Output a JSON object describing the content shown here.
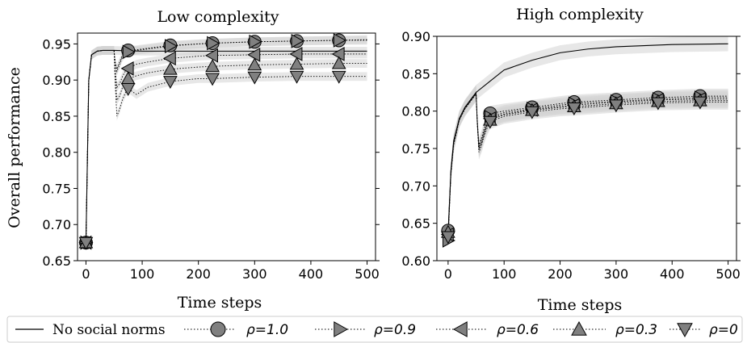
{
  "legend": {
    "entries": [
      {
        "label": "No social norms",
        "marker": "line"
      },
      {
        "label": "ρ=1.0",
        "marker": "circle"
      },
      {
        "label": "ρ=0.9",
        "marker": "triangle-right"
      },
      {
        "label": "ρ=0.6",
        "marker": "triangle-left"
      },
      {
        "label": "ρ=0.3",
        "marker": "triangle-up"
      },
      {
        "label": "ρ=0",
        "marker": "triangle-down"
      }
    ]
  },
  "colors": {
    "line": "#000000",
    "marker_fill": "#808080",
    "band": "#d3d3d3"
  },
  "chart_data": [
    {
      "type": "line",
      "title": "Low complexity",
      "xlabel": "Time steps",
      "ylabel": "Overall performance",
      "xlim": [
        -15,
        515
      ],
      "ylim": [
        0.65,
        0.965
      ],
      "xticks": [
        0,
        100,
        200,
        300,
        400,
        500
      ],
      "yticks": [
        0.65,
        0.7,
        0.75,
        0.8,
        0.85,
        0.9,
        0.95
      ],
      "ytick_labels": [
        "0.65",
        "0.70",
        "0.75",
        "0.80",
        "0.85",
        "0.90",
        "0.95"
      ],
      "series": [
        {
          "name": "No social norms",
          "marker": "none",
          "x": [
            0,
            5,
            10,
            20,
            30,
            40,
            50,
            100,
            200,
            300,
            400,
            500
          ],
          "y": [
            0.675,
            0.9,
            0.935,
            0.94,
            0.941,
            0.941,
            0.941,
            0.94,
            0.94,
            0.94,
            0.94,
            0.94
          ]
        },
        {
          "name": "ρ=1.0",
          "marker": "circle",
          "x": [
            0,
            5,
            10,
            20,
            30,
            40,
            50,
            52,
            55,
            60,
            65,
            70,
            75,
            90,
            110,
            150,
            200,
            225,
            300,
            375,
            450,
            500
          ],
          "y": [
            0.675,
            0.9,
            0.935,
            0.94,
            0.941,
            0.941,
            0.941,
            0.925,
            0.915,
            0.925,
            0.935,
            0.94,
            0.941,
            0.942,
            0.944,
            0.948,
            0.95,
            0.951,
            0.953,
            0.954,
            0.955,
            0.955
          ]
        },
        {
          "name": "ρ=0.9",
          "marker": "triangle-right",
          "x": [
            0,
            5,
            10,
            20,
            30,
            40,
            50,
            52,
            55,
            60,
            65,
            70,
            75,
            90,
            110,
            150,
            200,
            225,
            300,
            375,
            450,
            500
          ],
          "y": [
            0.675,
            0.9,
            0.935,
            0.94,
            0.941,
            0.941,
            0.941,
            0.923,
            0.912,
            0.922,
            0.932,
            0.937,
            0.939,
            0.941,
            0.943,
            0.947,
            0.95,
            0.951,
            0.953,
            0.954,
            0.955,
            0.956
          ]
        },
        {
          "name": "ρ=0.6",
          "marker": "triangle-left",
          "x": [
            0,
            5,
            10,
            20,
            30,
            40,
            50,
            52,
            55,
            60,
            65,
            70,
            75,
            90,
            110,
            150,
            200,
            225,
            300,
            375,
            450,
            500
          ],
          "y": [
            0.675,
            0.9,
            0.935,
            0.94,
            0.941,
            0.941,
            0.941,
            0.915,
            0.89,
            0.895,
            0.905,
            0.912,
            0.916,
            0.922,
            0.925,
            0.93,
            0.933,
            0.934,
            0.935,
            0.936,
            0.936,
            0.936
          ]
        },
        {
          "name": "ρ=0.3",
          "marker": "triangle-up",
          "x": [
            0,
            5,
            10,
            20,
            30,
            40,
            50,
            52,
            55,
            60,
            65,
            70,
            75,
            90,
            110,
            150,
            200,
            225,
            300,
            375,
            450,
            500
          ],
          "y": [
            0.675,
            0.9,
            0.935,
            0.94,
            0.941,
            0.941,
            0.941,
            0.905,
            0.872,
            0.878,
            0.89,
            0.898,
            0.902,
            0.906,
            0.91,
            0.915,
            0.918,
            0.919,
            0.921,
            0.922,
            0.923,
            0.923
          ]
        },
        {
          "name": "ρ=0",
          "marker": "triangle-down",
          "x": [
            0,
            5,
            10,
            20,
            30,
            40,
            50,
            52,
            55,
            60,
            65,
            70,
            75,
            90,
            110,
            150,
            200,
            225,
            300,
            375,
            450,
            500
          ],
          "y": [
            0.675,
            0.9,
            0.935,
            0.94,
            0.941,
            0.941,
            0.941,
            0.895,
            0.85,
            0.86,
            0.873,
            0.882,
            0.888,
            0.88,
            0.89,
            0.898,
            0.902,
            0.902,
            0.904,
            0.905,
            0.905,
            0.905
          ]
        }
      ],
      "markers_x": [
        0,
        75,
        150,
        225,
        300,
        375,
        450
      ]
    },
    {
      "type": "line",
      "title": "High complexity",
      "xlabel": "Time steps",
      "ylabel": "",
      "xlim": [
        -20,
        515
      ],
      "ylim": [
        0.6,
        0.9
      ],
      "xticks": [
        0,
        100,
        200,
        300,
        400,
        500
      ],
      "yticks": [
        0.6,
        0.65,
        0.7,
        0.75,
        0.8,
        0.85,
        0.9
      ],
      "ytick_labels": [
        "0.60",
        "0.65",
        "0.70",
        "0.75",
        "0.80",
        "0.85",
        "0.90"
      ],
      "series": [
        {
          "name": "No social norms",
          "marker": "none",
          "x": [
            0,
            5,
            10,
            20,
            30,
            40,
            50,
            75,
            100,
            150,
            200,
            250,
            300,
            400,
            500
          ],
          "y": [
            0.635,
            0.72,
            0.76,
            0.79,
            0.805,
            0.815,
            0.825,
            0.84,
            0.855,
            0.868,
            0.878,
            0.883,
            0.886,
            0.889,
            0.89
          ]
        },
        {
          "name": "ρ=1.0",
          "marker": "circle",
          "x": [
            0,
            5,
            10,
            20,
            30,
            40,
            50,
            52,
            55,
            60,
            65,
            70,
            75,
            100,
            150,
            200,
            225,
            300,
            375,
            450,
            500
          ],
          "y": [
            0.64,
            0.72,
            0.76,
            0.79,
            0.805,
            0.815,
            0.825,
            0.79,
            0.755,
            0.765,
            0.778,
            0.79,
            0.797,
            0.8,
            0.805,
            0.81,
            0.812,
            0.815,
            0.818,
            0.82,
            0.82
          ]
        },
        {
          "name": "ρ=0.9",
          "marker": "triangle-right",
          "x": [
            0,
            5,
            10,
            20,
            30,
            40,
            50,
            52,
            55,
            60,
            65,
            70,
            75,
            100,
            150,
            200,
            225,
            300,
            375,
            450,
            500
          ],
          "y": [
            0.627,
            0.715,
            0.755,
            0.788,
            0.803,
            0.813,
            0.823,
            0.788,
            0.752,
            0.762,
            0.775,
            0.785,
            0.792,
            0.798,
            0.803,
            0.808,
            0.81,
            0.813,
            0.816,
            0.818,
            0.818
          ]
        },
        {
          "name": "ρ=0.6",
          "marker": "triangle-left",
          "x": [
            0,
            5,
            10,
            20,
            30,
            40,
            50,
            52,
            55,
            60,
            65,
            70,
            75,
            100,
            150,
            200,
            225,
            300,
            375,
            450,
            500
          ],
          "y": [
            0.635,
            0.718,
            0.758,
            0.789,
            0.804,
            0.814,
            0.824,
            0.787,
            0.75,
            0.76,
            0.773,
            0.783,
            0.79,
            0.796,
            0.802,
            0.806,
            0.808,
            0.812,
            0.815,
            0.816,
            0.816
          ]
        },
        {
          "name": "ρ=0.3",
          "marker": "triangle-up",
          "x": [
            0,
            5,
            10,
            20,
            30,
            40,
            50,
            52,
            55,
            60,
            65,
            70,
            75,
            100,
            150,
            200,
            225,
            300,
            375,
            450,
            500
          ],
          "y": [
            0.638,
            0.718,
            0.758,
            0.789,
            0.804,
            0.814,
            0.824,
            0.786,
            0.748,
            0.758,
            0.771,
            0.781,
            0.788,
            0.795,
            0.801,
            0.805,
            0.806,
            0.81,
            0.813,
            0.814,
            0.814
          ]
        },
        {
          "name": "ρ=0",
          "marker": "triangle-down",
          "x": [
            0,
            5,
            10,
            20,
            30,
            40,
            50,
            52,
            55,
            60,
            65,
            70,
            75,
            100,
            150,
            200,
            225,
            300,
            375,
            450,
            500
          ],
          "y": [
            0.632,
            0.716,
            0.756,
            0.788,
            0.803,
            0.813,
            0.823,
            0.785,
            0.745,
            0.755,
            0.768,
            0.778,
            0.786,
            0.793,
            0.799,
            0.803,
            0.804,
            0.808,
            0.811,
            0.812,
            0.812
          ]
        }
      ],
      "markers_x": [
        0,
        75,
        150,
        225,
        300,
        375,
        450
      ]
    }
  ]
}
